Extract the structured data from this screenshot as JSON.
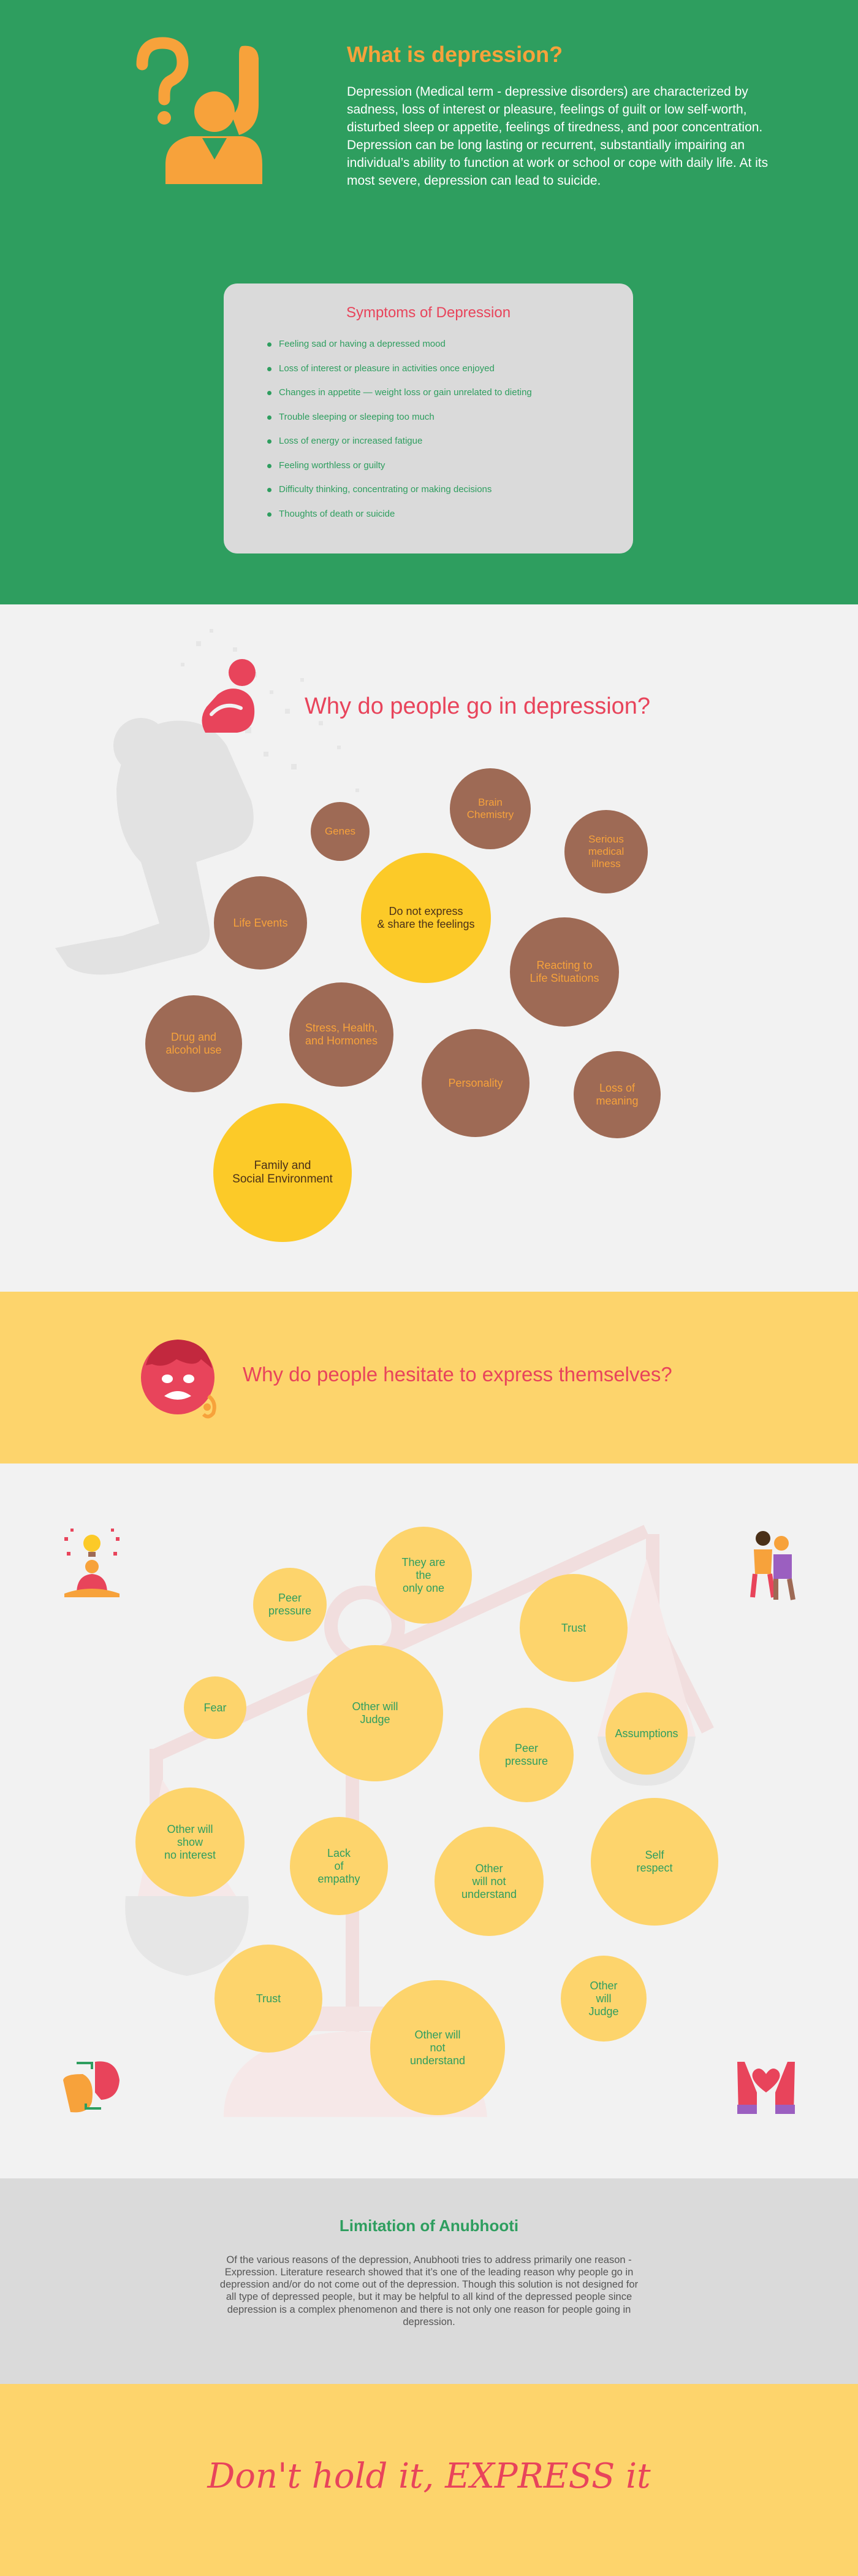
{
  "section_what": {
    "title": "What is depression?",
    "body": "Depression (Medical term - depressive disorders) are characterized by sadness, loss of interest or pleasure, feelings of guilt or low self-worth, disturbed sleep or appetite, feelings of tiredness, and poor concentration. Depression can be long lasting or recurrent, substantially impairing an individual’s ability to function at work or school or cope with daily life. At its most severe, depression can lead to suicide.",
    "icon": "question-person-icon"
  },
  "symptoms": {
    "title": "Symptoms of Depression",
    "items": [
      "Feeling sad or having a depressed mood",
      "Loss of interest or pleasure in activities once enjoyed",
      "Changes in appetite — weight loss or gain unrelated to dieting",
      "Trouble sleeping or sleeping too much",
      "Loss of energy or increased fatigue",
      "Feeling worthless or guilty",
      "Difficulty thinking, concentrating or making decisions",
      "Thoughts of death or suicide"
    ]
  },
  "section_why": {
    "title": "Why do people go in depression?",
    "icon": "sad-person-icon",
    "bubbles": [
      {
        "label": "Brain\nChemistry",
        "style": "brown"
      },
      {
        "label": "Genes",
        "style": "brown"
      },
      {
        "label": "Serious\nmedical\nillness",
        "style": "brown"
      },
      {
        "label": "Life Events",
        "style": "brown"
      },
      {
        "label": "Do not express\n& share the feelings",
        "style": "gold"
      },
      {
        "label": "Reacting to\nLife Situations",
        "style": "brown"
      },
      {
        "label": "Drug and\nalcohol use",
        "style": "brown"
      },
      {
        "label": "Stress, Health,\nand Hormones",
        "style": "brown"
      },
      {
        "label": "Personality",
        "style": "brown"
      },
      {
        "label": "Loss of\nmeaning",
        "style": "brown"
      },
      {
        "label": "Family and\nSocial Environment",
        "style": "gold"
      }
    ]
  },
  "section_hesitate": {
    "title": "Why do people hesitate to express themselves?",
    "icon": "stressed-face-icon"
  },
  "hesitation_bubbles": [
    "They are\nthe\nonly one",
    "Peer\npressure",
    "Trust",
    "Fear",
    "Other will\nJudge",
    "Peer\npressure",
    "Assumptions",
    "Other will\nshow\nno interest",
    "Lack\nof\nempathy",
    "Other\nwill not\nunderstand",
    "Self\nrespect",
    "Trust",
    "Other\nwill\nJudge",
    "Other will\nnot\nunderstand"
  ],
  "decor_icons": [
    "meditation-lightbulb-icon",
    "friends-support-icon",
    "conversation-icon",
    "heart-hands-icon",
    "balance-scale-icon"
  ],
  "limitation": {
    "title": "Limitation of Anubhooti",
    "body": "Of the various reasons of the depression, Anubhooti tries to address primarily one reason - Expression. Literature research showed that it’s one of the leading reason why people go in depression and/or do not come out of the depression. Though this solution is not designed for all type of depressed people, but it may be helpful to all kind of the depressed people since depression is a complex phenomenon and there is not only one reason for people going in depression."
  },
  "slogan": "Don't hold it, EXPRESS it",
  "colors": {
    "green": "#2e9e5f",
    "orange": "#f7a23b",
    "pink": "#e8445b",
    "brown": "#9e6a55",
    "gold": "#fcca28",
    "light_yellow": "#fdd46c",
    "grey": "#dadada"
  }
}
